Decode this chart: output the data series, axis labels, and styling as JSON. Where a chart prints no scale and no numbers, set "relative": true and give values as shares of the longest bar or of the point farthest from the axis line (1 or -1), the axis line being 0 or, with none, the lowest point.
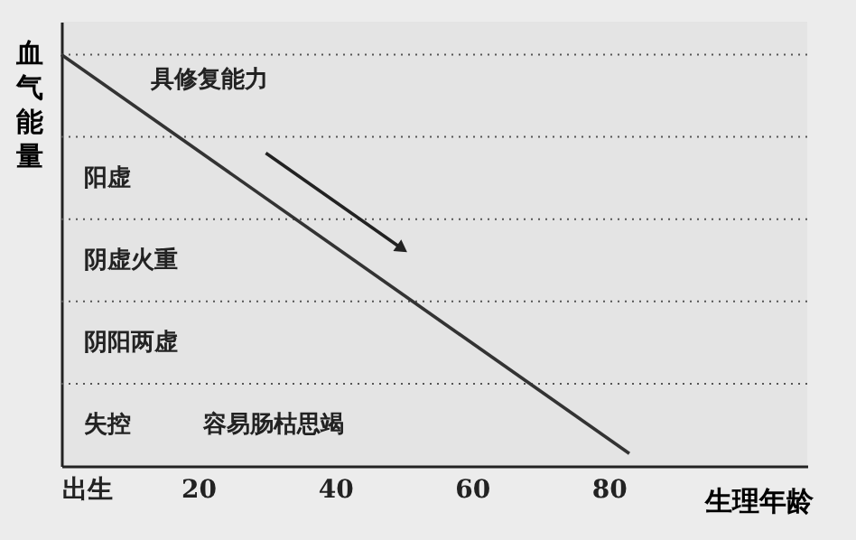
{
  "chart_data": {
    "type": "line",
    "relative": true,
    "ylabel": "血气能量",
    "xlabel": "生理年龄",
    "x": [
      0,
      83
    ],
    "series": [
      {
        "color": "#333333",
        "values": [
          1,
          0.03
        ]
      }
    ],
    "xlim": [
      0,
      109
    ],
    "xticks": [
      {
        "value": 0,
        "label": "出生"
      },
      20,
      40,
      60,
      80
    ],
    "ref_lines": [
      {
        "axis": "y",
        "value": 1,
        "line_style": "dotted"
      },
      {
        "axis": "y",
        "value": 0.8,
        "line_style": "dotted"
      },
      {
        "axis": "y",
        "value": 0.6,
        "line_style": "dotted"
      },
      {
        "axis": "y",
        "value": 0.4,
        "line_style": "dotted"
      },
      {
        "axis": "y",
        "value": 0.2,
        "line_style": "dotted"
      }
    ],
    "annotations": [
      "具修复能力",
      "阳虚",
      "阴虚火重",
      "阴阳两虚",
      "失控",
      "容易肠枯思竭"
    ],
    "grid": false,
    "marker": "none",
    "line_style": "solid"
  }
}
